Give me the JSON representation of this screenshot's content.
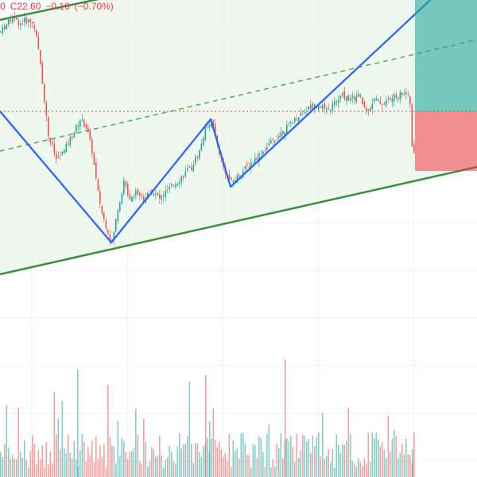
{
  "header": {
    "partial_value": "0",
    "close_label": "C22.60",
    "change": "−0.16",
    "change_pct": "(−0.70%)"
  },
  "colors": {
    "up": "#26a69a",
    "down": "#ef5350",
    "channel_line": "#388e3c",
    "channel_fill": "#e8f5e9",
    "zigzag": "#2962ff",
    "dotted_price_line": "#f23645",
    "target_zone": "#26a69a",
    "stop_zone": "#f23645",
    "grid": "#eceff1"
  },
  "chart_data": {
    "type": "candlestick",
    "ylim": [
      18.0,
      24.0
    ],
    "last_price": 22.6,
    "price_series": [
      [
        0,
        23.6
      ],
      [
        8,
        23.7
      ],
      [
        16,
        23.8
      ],
      [
        24,
        23.7
      ],
      [
        32,
        23.75
      ],
      [
        42,
        23.7
      ],
      [
        50,
        23.2
      ],
      [
        60,
        22.3
      ],
      [
        70,
        22.0
      ],
      [
        80,
        22.1
      ],
      [
        90,
        22.3
      ],
      [
        100,
        22.5
      ],
      [
        108,
        22.4
      ],
      [
        115,
        22.1
      ],
      [
        122,
        21.6
      ],
      [
        128,
        21.3
      ],
      [
        135,
        21.1
      ],
      [
        140,
        20.95
      ],
      [
        148,
        21.4
      ],
      [
        155,
        21.7
      ],
      [
        163,
        21.5
      ],
      [
        170,
        21.6
      ],
      [
        180,
        21.5
      ],
      [
        190,
        21.6
      ],
      [
        200,
        21.5
      ],
      [
        210,
        21.6
      ],
      [
        220,
        21.7
      ],
      [
        230,
        21.8
      ],
      [
        240,
        21.9
      ],
      [
        250,
        22.1
      ],
      [
        258,
        22.4
      ],
      [
        265,
        22.5
      ],
      [
        272,
        22.2
      ],
      [
        280,
        21.9
      ],
      [
        290,
        21.7
      ],
      [
        300,
        21.8
      ],
      [
        310,
        21.9
      ],
      [
        320,
        22.0
      ],
      [
        330,
        22.1
      ],
      [
        340,
        22.2
      ],
      [
        350,
        22.3
      ],
      [
        360,
        22.4
      ],
      [
        370,
        22.5
      ],
      [
        380,
        22.6
      ],
      [
        390,
        22.65
      ],
      [
        400,
        22.7
      ],
      [
        410,
        22.6
      ],
      [
        420,
        22.7
      ],
      [
        430,
        22.8
      ],
      [
        440,
        22.75
      ],
      [
        450,
        22.8
      ],
      [
        460,
        22.6
      ],
      [
        470,
        22.75
      ],
      [
        480,
        22.7
      ],
      [
        490,
        22.75
      ],
      [
        500,
        22.8
      ],
      [
        510,
        22.85
      ],
      [
        515,
        22.7
      ],
      [
        519,
        21.8
      ],
      [
        522,
        22.6
      ]
    ],
    "channel": {
      "upper": [
        [
          0,
          23.75
        ],
        [
          522,
          24.85
        ]
      ],
      "lower": [
        [
          0,
          20.55
        ],
        [
          600,
          21.9
        ]
      ],
      "mid_dashed": [
        [
          0,
          22.1
        ],
        [
          600,
          23.5
        ]
      ]
    },
    "zigzag": [
      [
        0,
        22.6
      ],
      [
        140,
        20.95
      ],
      [
        265,
        22.5
      ],
      [
        290,
        21.65
      ],
      [
        600,
        24.55
      ]
    ],
    "position": {
      "entry": 22.6,
      "target": 24.85,
      "stop": 21.85,
      "x_start": 522
    }
  }
}
